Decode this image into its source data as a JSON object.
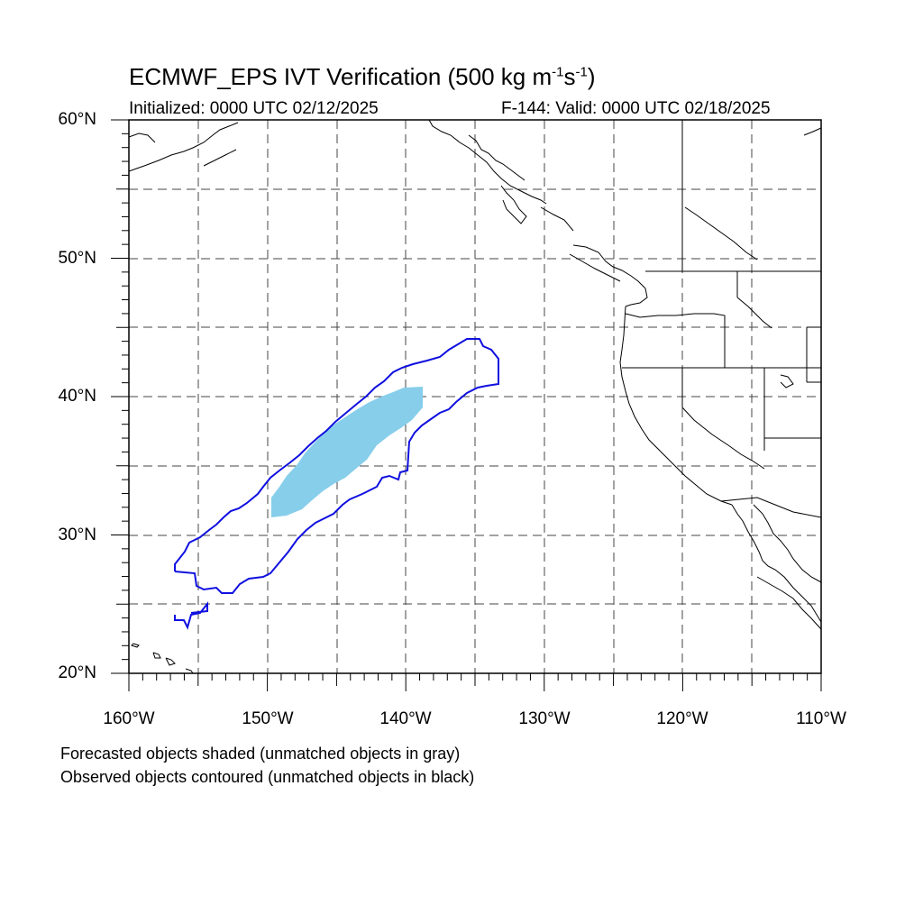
{
  "header": {
    "title_main": "ECMWF_EPS IVT Verification (500 kg m",
    "title_exp1": "-1",
    "title_mid": "s",
    "title_exp2": "-1",
    "title_end": ")",
    "initialized": "Initialized: 0000 UTC 02/12/2025",
    "valid": "F-144: Valid: 0000 UTC 02/18/2025"
  },
  "axes": {
    "lat_labels": [
      "60°N",
      "50°N",
      "40°N",
      "30°N",
      "20°N"
    ],
    "lon_labels": [
      "160°W",
      "150°W",
      "140°W",
      "130°W",
      "120°W",
      "110°W"
    ]
  },
  "legend": {
    "line1": "Forecasted objects shaded (unmatched objects in gray)",
    "line2": "Observed objects contoured (unmatched objects in black)"
  },
  "colors": {
    "forecast_fill": "#87CEEB",
    "observed_contour": "#1010e0",
    "coast": "#000000",
    "grid": "#444444"
  }
}
